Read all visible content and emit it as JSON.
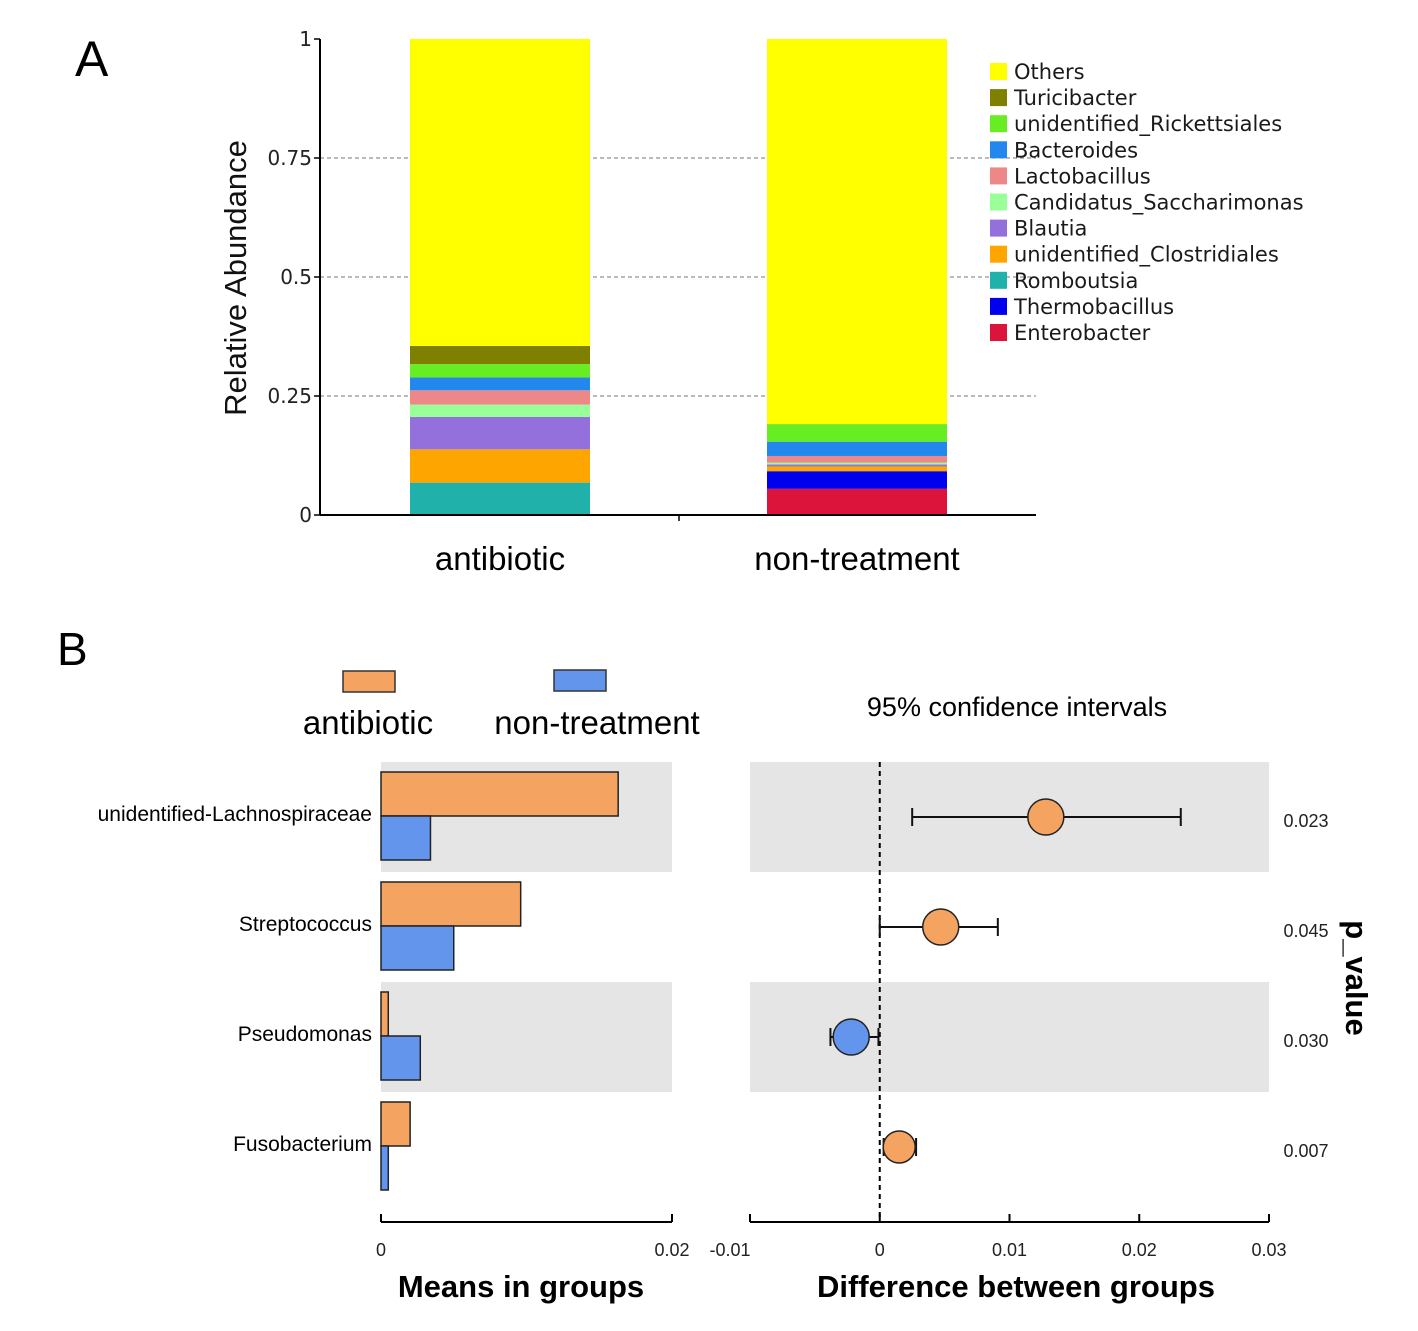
{
  "colors": {
    "Others": "#ffff00",
    "Turicibacter": "#7f7f00",
    "unidentified_Rickettsiales": "#66ee22",
    "Bacteroides": "#2288ee",
    "Lactobacillus": "#ee8888",
    "Candidatus_Saccharimonas": "#99ff99",
    "Blautia": "#9370db",
    "unidentified_Clostridiales": "#ffa500",
    "Romboutsia": "#20b2aa",
    "Thermobacillus": "#0000ee",
    "Enterobacter": "#dc143c",
    "antibiotic": "#f4a460",
    "non_treatment": "#6495ed",
    "panel_bg": "#e5e5e5"
  },
  "chart_data": [
    {
      "panel": "A",
      "type": "bar",
      "stacked": true,
      "ylabel": "Relative Abundance",
      "ylim": [
        0,
        1
      ],
      "yticks": [
        "0",
        "0.25",
        "0.5",
        "0.75",
        "1"
      ],
      "grid": "dashed horizontal",
      "legend_position": "right",
      "categories": [
        "antibiotic",
        "non-treatment"
      ],
      "series": [
        {
          "name": "Enterobacter",
          "values": [
            0,
            0.055
          ]
        },
        {
          "name": "Thermobacillus",
          "values": [
            0,
            0.037
          ]
        },
        {
          "name": "Romboutsia",
          "values": [
            0.068,
            0
          ]
        },
        {
          "name": "unidentified_Clostridiales",
          "values": [
            0.07,
            0.01
          ]
        },
        {
          "name": "Blautia",
          "values": [
            0.068,
            0.004
          ]
        },
        {
          "name": "Candidatus_Saccharimonas",
          "values": [
            0.026,
            0.004
          ]
        },
        {
          "name": "Lactobacillus",
          "values": [
            0.03,
            0.014
          ]
        },
        {
          "name": "Bacteroides",
          "values": [
            0.027,
            0.03
          ]
        },
        {
          "name": "unidentified_Rickettsiales",
          "values": [
            0.028,
            0.037
          ]
        },
        {
          "name": "Turicibacter",
          "values": [
            0.038,
            0
          ]
        },
        {
          "name": "Others",
          "values": [
            0.645,
            0.809
          ]
        }
      ],
      "legend": [
        "Others",
        "Turicibacter",
        "unidentified_Rickettsiales",
        "Bacteroides",
        "Lactobacillus",
        "Candidatus_Saccharimonas",
        "Blautia",
        "unidentified_Clostridiales",
        "Romboutsia",
        "Thermobacillus",
        "Enterobacter"
      ]
    },
    {
      "panel": "B-left",
      "type": "bar",
      "orientation": "horizontal",
      "xlabel": "Means in groups",
      "xlim": [
        0,
        0.02
      ],
      "xticks": [
        "0",
        "0.02"
      ],
      "categories": [
        "unidentified-Lachnospiraceae",
        "Streptococcus",
        "Pseudomonas",
        "Fusobacterium"
      ],
      "series": [
        {
          "name": "antibiotic",
          "values": [
            0.0163,
            0.0096,
            0.0005,
            0.002
          ]
        },
        {
          "name": "non-treatment",
          "values": [
            0.0034,
            0.005,
            0.0027,
            0.0005
          ]
        }
      ],
      "legend": [
        "antibiotic",
        "non-treatment"
      ]
    },
    {
      "panel": "B-right",
      "type": "scatter",
      "title": "95% confidence intervals",
      "xlabel": "Difference between groups",
      "xlim": [
        -0.01,
        0.03
      ],
      "xticks": [
        "-0.01",
        "0",
        "0.01",
        "0.02",
        "0.03"
      ],
      "ylabel": "p_value",
      "categories": [
        "unidentified-Lachnospiraceae",
        "Streptococcus",
        "Pseudomonas",
        "Fusobacterium"
      ],
      "estimate": [
        0.0128,
        0.0047,
        -0.0022,
        0.0015
      ],
      "ci_low": [
        0.0025,
        0.0,
        -0.0038,
        0.0003
      ],
      "ci_high": [
        0.0232,
        0.0091,
        -0.0001,
        0.0028
      ],
      "favors": [
        "antibiotic",
        "antibiotic",
        "non_treatment",
        "antibiotic"
      ],
      "p_values": [
        "0.023",
        "0.045",
        "0.030",
        "0.007"
      ]
    }
  ],
  "labels": {
    "panel_a": "A",
    "panel_b": "B"
  }
}
